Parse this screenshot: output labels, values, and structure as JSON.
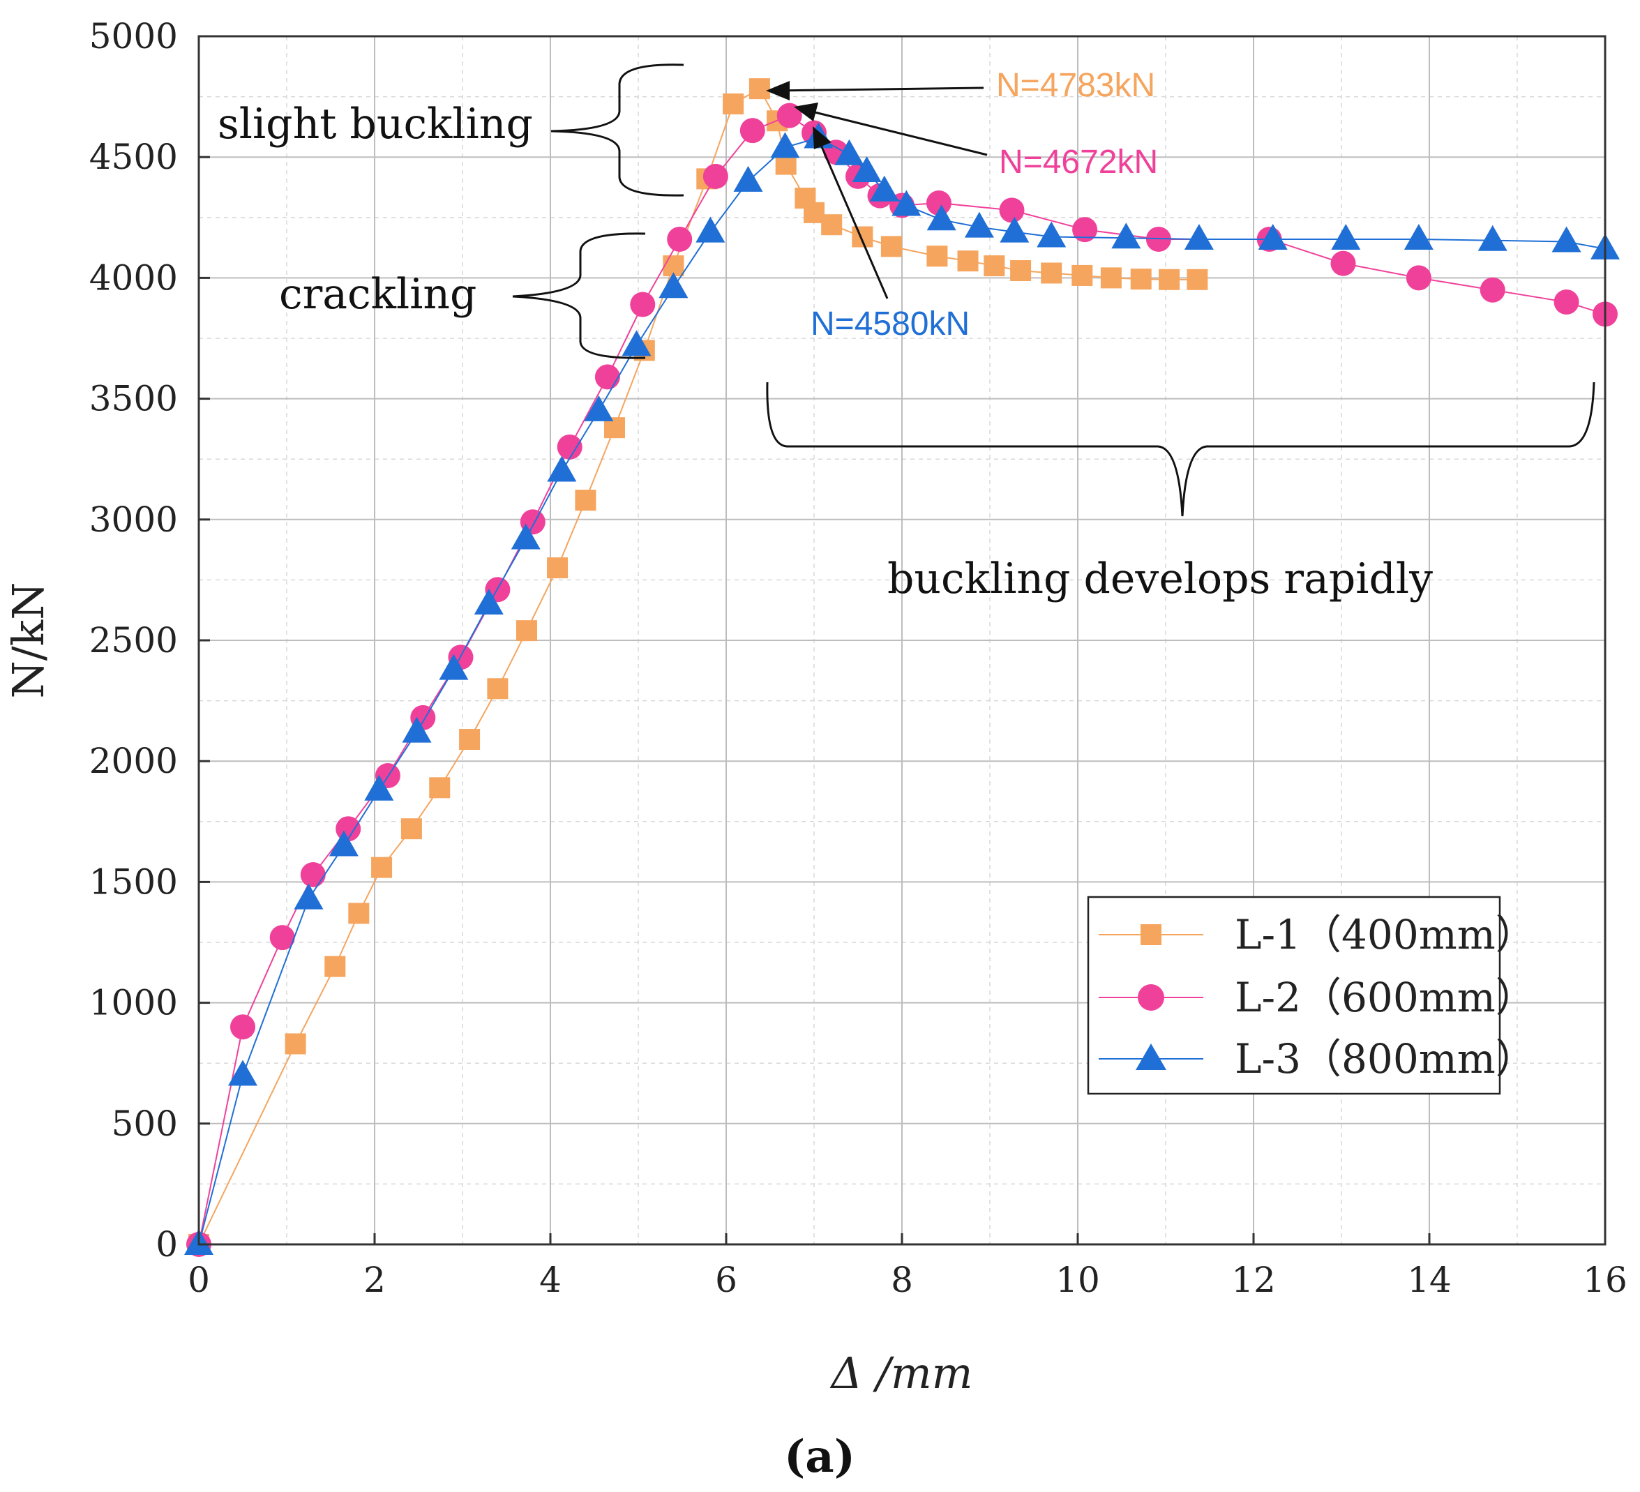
{
  "chart_data": {
    "type": "line",
    "panel_label": "(a)",
    "xlabel": "Δ /mm",
    "ylabel": "N/kN",
    "xlim": [
      0,
      16
    ],
    "ylim": [
      0,
      5000
    ],
    "xticks": [
      0,
      2,
      4,
      6,
      8,
      10,
      12,
      14,
      16
    ],
    "yticks": [
      0,
      500,
      1000,
      1500,
      2000,
      2500,
      3000,
      3500,
      4000,
      4500,
      5000
    ],
    "grid": true,
    "legend_position": "bottom-right",
    "colors": {
      "L1": "#f5a55e",
      "L2": "#f0419a",
      "L3": "#1f6fd6"
    },
    "series": [
      {
        "name": "L-1（400mm）",
        "marker": "square",
        "x": [
          0,
          1.1,
          1.55,
          1.82,
          2.08,
          2.42,
          2.74,
          3.08,
          3.4,
          3.73,
          4.08,
          4.4,
          4.73,
          5.07,
          5.4,
          5.78,
          6.08,
          6.38,
          6.58,
          6.68,
          6.9,
          7.0,
          7.2,
          7.55,
          7.88,
          8.4,
          8.75,
          9.05,
          9.35,
          9.7,
          10.05,
          10.38,
          10.72,
          11.04,
          11.36
        ],
        "y": [
          0,
          830,
          1150,
          1370,
          1560,
          1720,
          1890,
          2090,
          2300,
          2540,
          2800,
          3080,
          3380,
          3700,
          4050,
          4410,
          4720,
          4783,
          4650,
          4470,
          4330,
          4270,
          4220,
          4170,
          4130,
          4090,
          4070,
          4050,
          4030,
          4020,
          4010,
          4000,
          3995,
          3993,
          3993
        ]
      },
      {
        "name": "L-2（600mm）",
        "marker": "circle",
        "x": [
          0,
          0.5,
          0.95,
          1.3,
          1.7,
          2.15,
          2.55,
          2.98,
          3.4,
          3.8,
          4.22,
          4.65,
          5.05,
          5.47,
          5.88,
          6.3,
          6.72,
          7.0,
          7.25,
          7.5,
          7.75,
          8.0,
          8.42,
          9.25,
          10.08,
          10.92,
          12.18,
          13.02,
          13.88,
          14.72,
          15.56,
          16.0
        ],
        "y": [
          0,
          900,
          1270,
          1530,
          1720,
          1940,
          2180,
          2430,
          2710,
          2990,
          3300,
          3590,
          3890,
          4160,
          4420,
          4610,
          4672,
          4600,
          4520,
          4420,
          4340,
          4300,
          4310,
          4280,
          4200,
          4160,
          4160,
          4060,
          4000,
          3950,
          3900,
          3850
        ]
      },
      {
        "name": "L-3（800mm）",
        "marker": "triangle",
        "x": [
          0,
          0.5,
          1.25,
          1.65,
          2.05,
          2.48,
          2.9,
          3.3,
          3.72,
          4.13,
          4.55,
          4.98,
          5.4,
          5.82,
          6.25,
          6.67,
          7.05,
          7.4,
          7.6,
          7.8,
          8.05,
          8.45,
          8.88,
          9.28,
          9.7,
          10.55,
          11.38,
          12.22,
          13.05,
          13.88,
          14.72,
          15.56,
          16.0
        ],
        "y": [
          0,
          700,
          1430,
          1650,
          1880,
          2120,
          2380,
          2650,
          2920,
          3200,
          3450,
          3720,
          3960,
          4190,
          4400,
          4540,
          4580,
          4510,
          4440,
          4360,
          4300,
          4240,
          4210,
          4190,
          4170,
          4165,
          4160,
          4160,
          4160,
          4160,
          4155,
          4150,
          4120
        ]
      }
    ],
    "annotations": {
      "peak_l1": "N=4783kN",
      "peak_l2": "N=4672kN",
      "peak_l3": "N=4580kN",
      "slight_buckling": "slight buckling",
      "crackling": "crackling",
      "buckling_rapid": "buckling develops rapidly"
    }
  }
}
